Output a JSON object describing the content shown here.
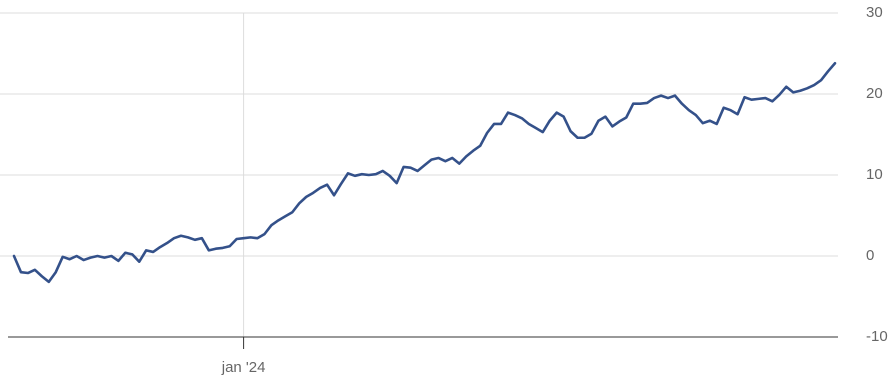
{
  "chart_data": {
    "type": "line",
    "categories": [
      null,
      null,
      null,
      null,
      null,
      null,
      null,
      null,
      null,
      null,
      null,
      null,
      null,
      null,
      null,
      null,
      null,
      null,
      null,
      null,
      null,
      null,
      null,
      null,
      null,
      null,
      null,
      null,
      null,
      null,
      null,
      null,
      null,
      "jan '24",
      null,
      null,
      null,
      null,
      null,
      null,
      null,
      null,
      null,
      null,
      null,
      null,
      null,
      null,
      null,
      null,
      null,
      null,
      null,
      null,
      null,
      null,
      null,
      null,
      null,
      null,
      null,
      null,
      null,
      null,
      null,
      null,
      null,
      null,
      null,
      null,
      null,
      null,
      null,
      null,
      null,
      null,
      null,
      null,
      null,
      null,
      null,
      null,
      null,
      null,
      null,
      null,
      null,
      null,
      null,
      null,
      null,
      null,
      null,
      null,
      null,
      null,
      null,
      null,
      null,
      null,
      null,
      null,
      null,
      null,
      null,
      null,
      null,
      null,
      null,
      null,
      null,
      null,
      null,
      null,
      null,
      null,
      null,
      null,
      null
    ],
    "values": [
      0,
      -2,
      -2.1,
      -1.7,
      -2.5,
      -3.2,
      -2,
      -0.1,
      -0.4,
      0,
      -0.5,
      -0.2,
      0,
      -0.2,
      0,
      -0.6,
      0.4,
      0.2,
      -0.7,
      0.7,
      0.5,
      1.1,
      1.6,
      2.2,
      2.5,
      2.3,
      2.0,
      2.2,
      0.7,
      0.9,
      1.0,
      1.2,
      2.1,
      2.2,
      2.3,
      2.2,
      2.7,
      3.8,
      4.4,
      4.9,
      5.4,
      6.5,
      7.3,
      7.8,
      8.4,
      8.8,
      7.5,
      8.9,
      10.2,
      9.9,
      10.1,
      10.0,
      10.1,
      10.5,
      9.9,
      9.0,
      11.0,
      10.9,
      10.5,
      11.2,
      11.9,
      12.1,
      11.7,
      12.1,
      11.4,
      12.3,
      13.0,
      13.6,
      15.2,
      16.3,
      16.3,
      17.7,
      17.4,
      17.0,
      16.3,
      15.8,
      15.3,
      16.7,
      17.7,
      17.2,
      15.4,
      14.6,
      14.6,
      15.1,
      16.7,
      17.2,
      16.0,
      16.6,
      17.1,
      18.8,
      18.8,
      18.9,
      19.5,
      19.8,
      19.5,
      19.8,
      18.8,
      18.0,
      17.4,
      16.4,
      16.7,
      16.3,
      18.3,
      18.0,
      17.5,
      19.6,
      19.3,
      19.4,
      19.5,
      19.1,
      19.9,
      20.9,
      20.2,
      20.4,
      20.7,
      21.1,
      21.7,
      22.8,
      23.8
    ],
    "color": "#34518a",
    "ylim": [
      -10,
      30
    ],
    "yticks": [
      -10,
      0,
      10,
      20,
      30
    ],
    "grid": true
  }
}
